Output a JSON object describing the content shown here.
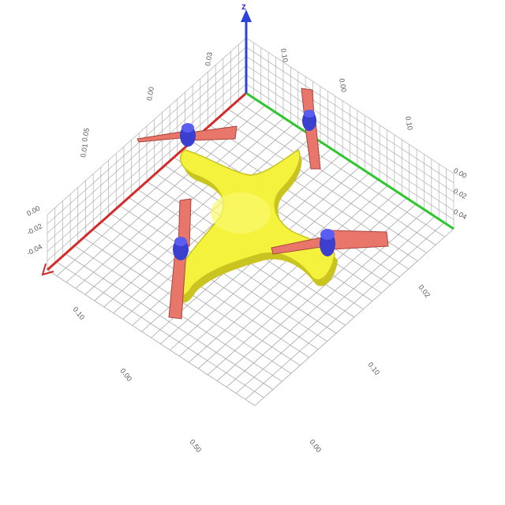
{
  "axes": {
    "z_label": "z",
    "colors": {
      "x": "#d42a2a",
      "y": "#2fc62f",
      "z": "#2a44d8",
      "grid": "#a8a8a8",
      "wall_grid": "#b0b0b0"
    }
  },
  "tick_labels": {
    "floor_left": [
      "0.10",
      "0.00",
      "0.50"
    ],
    "floor_right": [
      "0.02",
      "0.10",
      "0.00"
    ],
    "left_wall_z": [
      "0.00",
      "-0.02",
      "-0.04"
    ],
    "right_wall_z": [
      "0.00",
      "0.02",
      "0.04"
    ],
    "left_wall_top": [
      "0.03",
      "0.00",
      "0.05",
      "0.01"
    ],
    "right_wall_top": [
      "0.10",
      "0.00",
      "0.10"
    ]
  },
  "drone": {
    "body_color": "#f4f23c",
    "body_shadow": "#c9c420",
    "propeller_color": "#e8766b",
    "propeller_edge": "#a8463d",
    "motor_color": "#3b3fd0"
  }
}
